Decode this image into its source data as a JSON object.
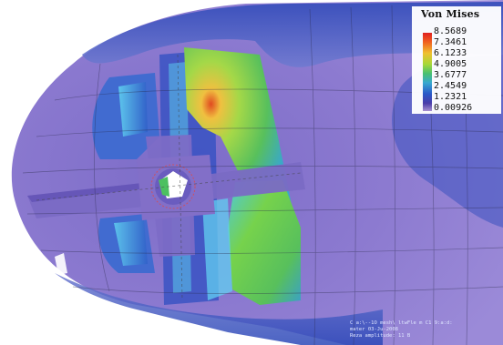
{
  "legend": {
    "title": "Von Mises",
    "values": [
      "8.5689",
      "7.3461",
      "6.1233",
      "4.9005",
      "3.6777",
      "2.4549",
      "1.2321",
      "0.00926"
    ]
  },
  "footer": {
    "line1": "C a:\\--1O mesh\\ ltwFle m C1 9:a:d:",
    "line2": "mater 03-Ju-2008",
    "line3": "Reza amplitude: 11 B"
  },
  "colors": {
    "background": "#ffffff",
    "base_violet": "#8e78cc",
    "stress_blue": "#2f4fc2",
    "stress_cyan": "#59c8e6",
    "stress_green": "#6acc52",
    "stress_yellow": "#e6d040",
    "stress_red": "#e03020"
  }
}
